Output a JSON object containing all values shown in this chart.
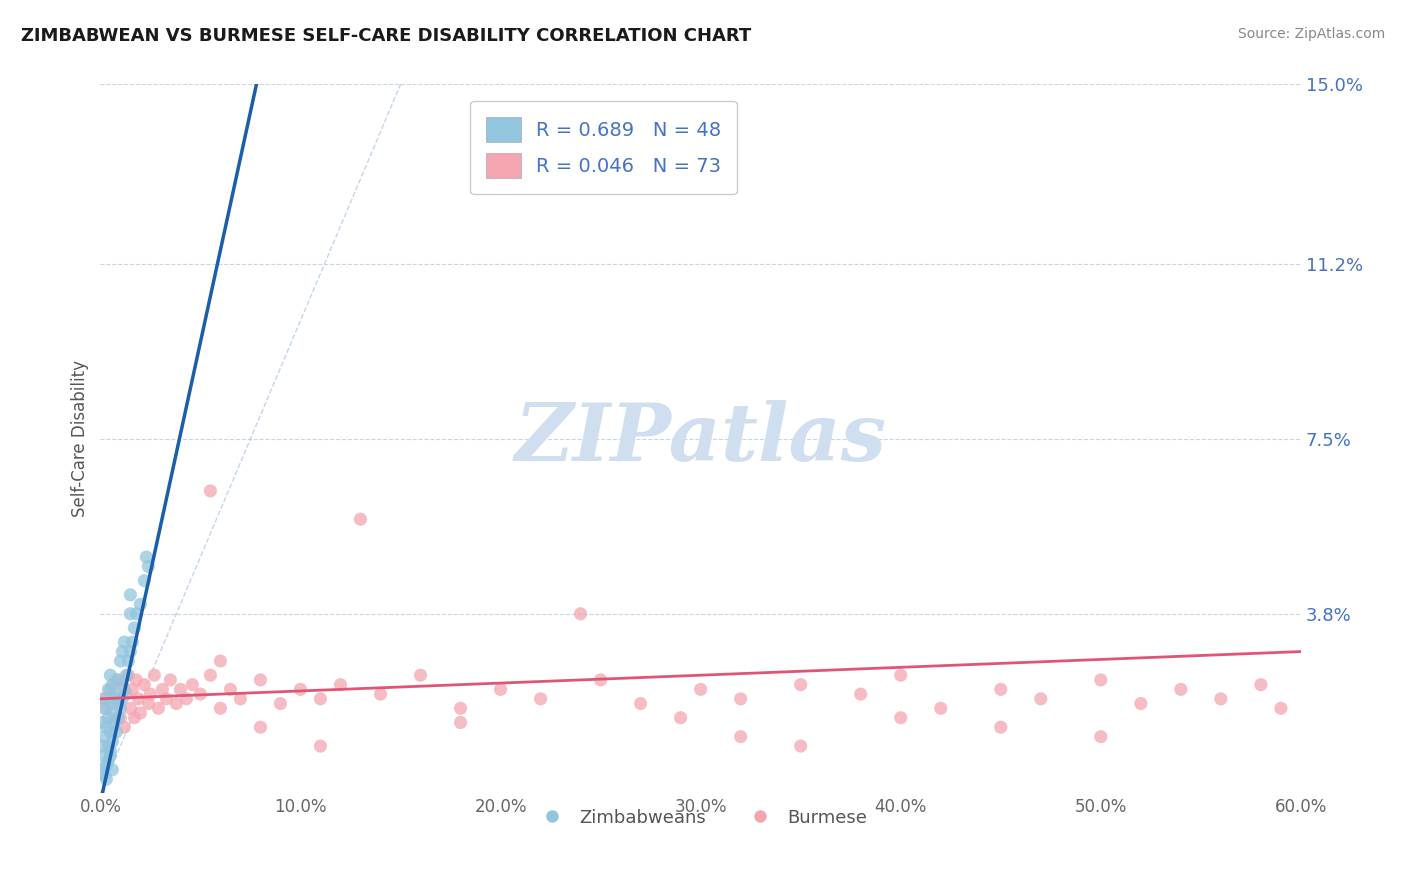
{
  "title": "ZIMBABWEAN VS BURMESE SELF-CARE DISABILITY CORRELATION CHART",
  "source_text": "Source: ZipAtlas.com",
  "ylabel": "Self-Care Disability",
  "xlim": [
    0.0,
    0.6
  ],
  "ylim": [
    0.0,
    0.15
  ],
  "yticks": [
    0.0,
    0.038,
    0.075,
    0.112,
    0.15
  ],
  "ytick_labels": [
    "",
    "3.8%",
    "7.5%",
    "11.2%",
    "15.0%"
  ],
  "xticks": [
    0.0,
    0.1,
    0.2,
    0.3,
    0.4,
    0.5,
    0.6
  ],
  "xtick_labels": [
    "0.0%",
    "10.0%",
    "20.0%",
    "30.0%",
    "40.0%",
    "50.0%",
    "60.0%"
  ],
  "zimbabwean_color": "#92c5de",
  "burmese_color": "#f4a6b0",
  "trend_zimbabwean_color": "#1a5fa8",
  "trend_burmese_color": "#e05575",
  "diag_line_color": "#aac4e0",
  "background_color": "#ffffff",
  "grid_color": "#c8d4e8",
  "watermark_color": "#d0dff0",
  "watermark_text": "ZIPatlas",
  "legend_r_zimbabwean": "R = 0.689",
  "legend_n_zimbabwean": "N = 48",
  "legend_r_burmese": "R = 0.046",
  "legend_n_burmese": "N = 73",
  "zimbabwean_label": "Zimbabweans",
  "burmese_label": "Burmese",
  "zim_trend_x0": 0.0,
  "zim_trend_y0": -0.002,
  "zim_trend_x1": 0.078,
  "zim_trend_y1": 0.15,
  "bur_trend_x0": 0.0,
  "bur_trend_y0": 0.02,
  "bur_trend_x1": 0.6,
  "bur_trend_y1": 0.03,
  "zimbabwean_x": [
    0.001,
    0.001,
    0.002,
    0.002,
    0.002,
    0.003,
    0.003,
    0.003,
    0.004,
    0.004,
    0.004,
    0.005,
    0.005,
    0.005,
    0.005,
    0.006,
    0.006,
    0.006,
    0.007,
    0.007,
    0.008,
    0.008,
    0.009,
    0.009,
    0.01,
    0.01,
    0.011,
    0.011,
    0.012,
    0.012,
    0.013,
    0.014,
    0.015,
    0.015,
    0.016,
    0.017,
    0.018,
    0.02,
    0.022,
    0.024,
    0.001,
    0.002,
    0.003,
    0.004,
    0.005,
    0.006,
    0.015,
    0.023
  ],
  "zimbabwean_y": [
    0.01,
    0.015,
    0.008,
    0.012,
    0.018,
    0.006,
    0.014,
    0.02,
    0.01,
    0.016,
    0.022,
    0.008,
    0.013,
    0.019,
    0.025,
    0.011,
    0.017,
    0.023,
    0.015,
    0.021,
    0.013,
    0.02,
    0.016,
    0.024,
    0.018,
    0.028,
    0.02,
    0.03,
    0.022,
    0.032,
    0.025,
    0.028,
    0.03,
    0.038,
    0.032,
    0.035,
    0.038,
    0.04,
    0.045,
    0.048,
    0.005,
    0.004,
    0.003,
    0.007,
    0.009,
    0.005,
    0.042,
    0.05
  ],
  "burmese_x": [
    0.001,
    0.003,
    0.005,
    0.007,
    0.008,
    0.009,
    0.01,
    0.011,
    0.012,
    0.013,
    0.014,
    0.015,
    0.016,
    0.017,
    0.018,
    0.019,
    0.02,
    0.022,
    0.024,
    0.025,
    0.027,
    0.029,
    0.031,
    0.033,
    0.035,
    0.038,
    0.04,
    0.043,
    0.046,
    0.05,
    0.055,
    0.06,
    0.065,
    0.07,
    0.08,
    0.09,
    0.1,
    0.11,
    0.12,
    0.14,
    0.16,
    0.18,
    0.2,
    0.22,
    0.25,
    0.27,
    0.3,
    0.32,
    0.35,
    0.38,
    0.4,
    0.42,
    0.45,
    0.47,
    0.5,
    0.52,
    0.54,
    0.56,
    0.58,
    0.59,
    0.055,
    0.13,
    0.24,
    0.18,
    0.32,
    0.29,
    0.06,
    0.11,
    0.4,
    0.08,
    0.5,
    0.45,
    0.35
  ],
  "burmese_y": [
    0.02,
    0.018,
    0.022,
    0.015,
    0.024,
    0.019,
    0.016,
    0.023,
    0.014,
    0.021,
    0.025,
    0.018,
    0.022,
    0.016,
    0.024,
    0.02,
    0.017,
    0.023,
    0.019,
    0.021,
    0.025,
    0.018,
    0.022,
    0.02,
    0.024,
    0.019,
    0.022,
    0.02,
    0.023,
    0.021,
    0.025,
    0.018,
    0.022,
    0.02,
    0.024,
    0.019,
    0.022,
    0.02,
    0.023,
    0.021,
    0.025,
    0.018,
    0.022,
    0.02,
    0.024,
    0.019,
    0.022,
    0.02,
    0.023,
    0.021,
    0.025,
    0.018,
    0.022,
    0.02,
    0.024,
    0.019,
    0.022,
    0.02,
    0.023,
    0.018,
    0.064,
    0.058,
    0.038,
    0.015,
    0.012,
    0.016,
    0.028,
    0.01,
    0.016,
    0.014,
    0.012,
    0.014,
    0.01
  ]
}
